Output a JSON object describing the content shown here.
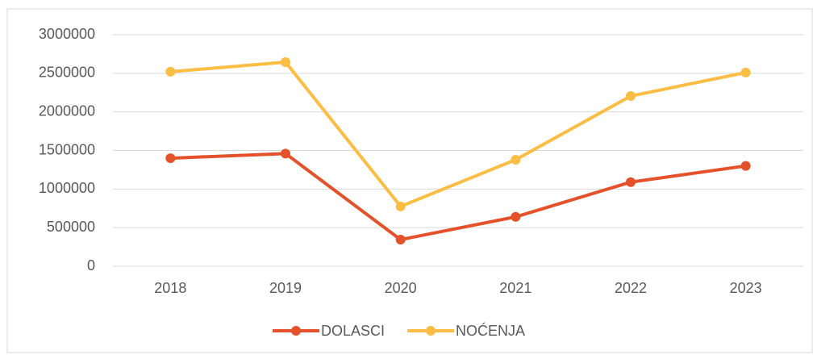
{
  "chart_data": {
    "type": "line",
    "categories": [
      "2018",
      "2019",
      "2020",
      "2021",
      "2022",
      "2023"
    ],
    "series": [
      {
        "name": "DOLASCI",
        "color": "#e5512b",
        "values": [
          1400000,
          1460000,
          345000,
          640000,
          1090000,
          1300000
        ]
      },
      {
        "name": "NOĆENJA",
        "color": "#fbbd44",
        "values": [
          2520000,
          2645000,
          775000,
          1380000,
          2205000,
          2510000
        ]
      }
    ],
    "ylim": [
      0,
      3000000
    ],
    "yticks": [
      0,
      500000,
      1000000,
      1500000,
      2000000,
      2500000,
      3000000
    ],
    "grid": true,
    "legend": "bottom"
  }
}
